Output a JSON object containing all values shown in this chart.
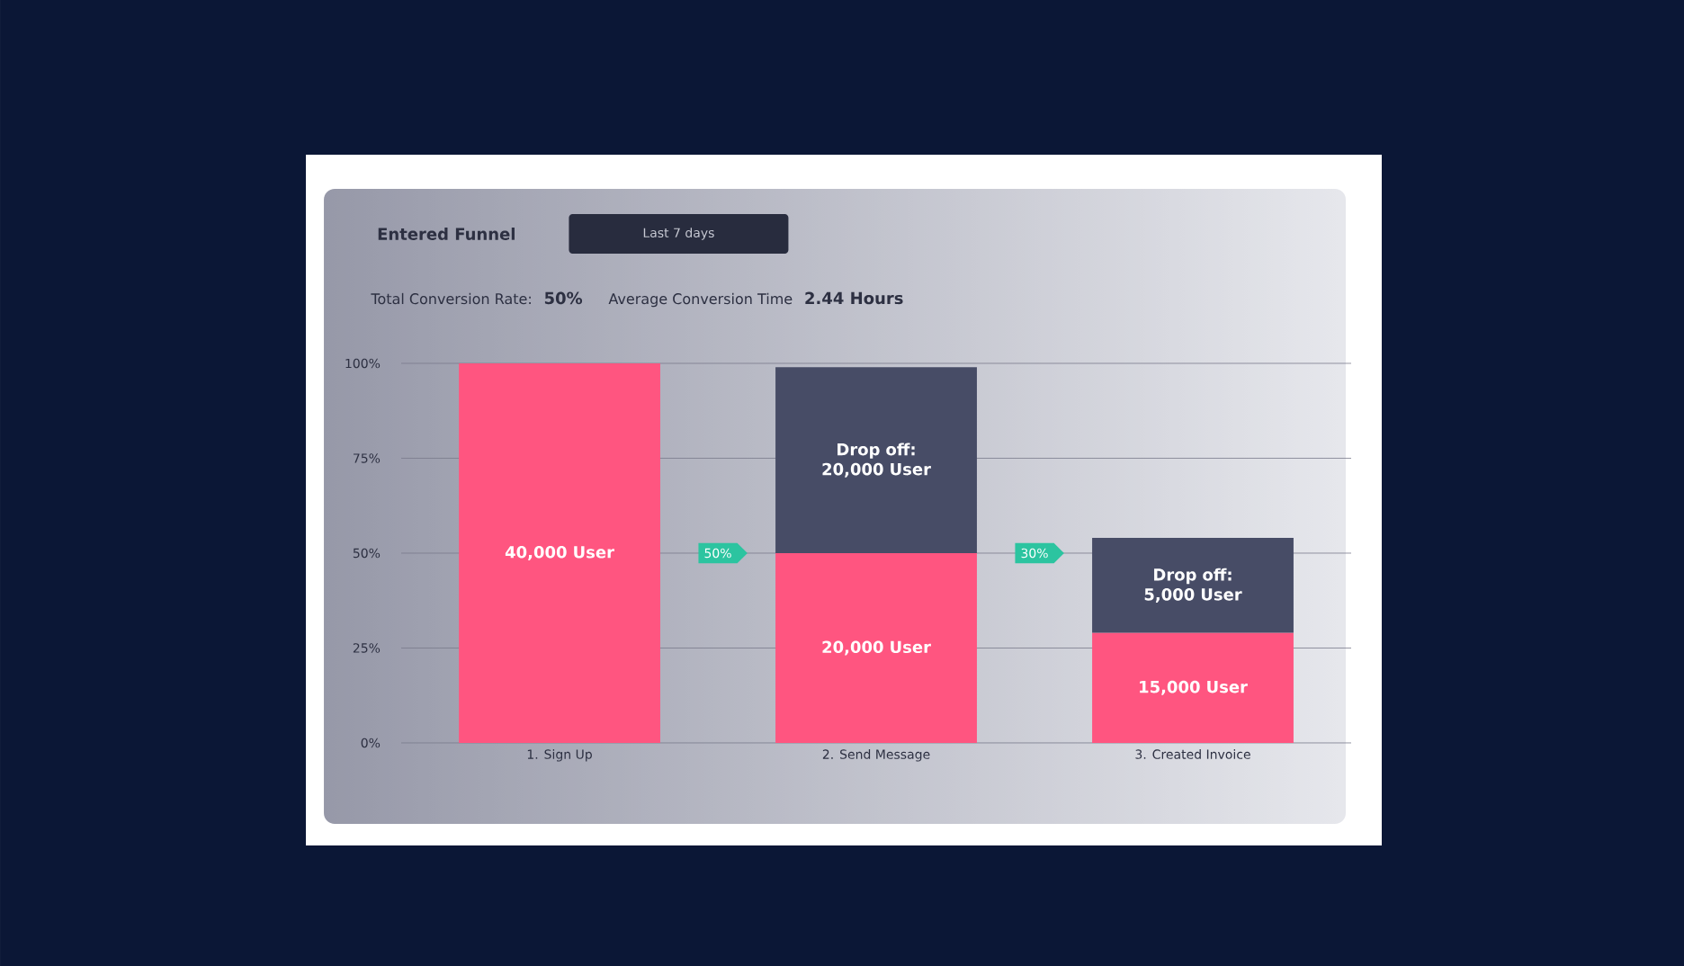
{
  "chart_data": {
    "type": "bar",
    "title": "Entered Funnel",
    "subtitle": "Last 7 days",
    "categories": [
      "1. Sign Up",
      "2. Send Message",
      "3. Created Invoice"
    ],
    "stacked": true,
    "series": [
      {
        "color": "#ff5580",
        "values": [
          100,
          50,
          29
        ]
      },
      {
        "color": "#474c66",
        "values": [
          null,
          49,
          25
        ]
      }
    ],
    "ylim": [
      0,
      100
    ],
    "yticks": [
      {
        "value": 0,
        "label": "0%"
      },
      {
        "value": 25,
        "label": "25%"
      },
      {
        "value": 50,
        "label": "50%"
      },
      {
        "value": 75,
        "label": "75%"
      },
      {
        "value": 100,
        "label": "100%"
      }
    ],
    "grid": "y",
    "annotations": [
      "Total Conversion Rate:",
      "50%",
      "Average Conversion Time",
      "2.44 Hours",
      "50%",
      "30%",
      "40,000 User",
      "20,000 User",
      "15,000 User",
      "Drop off: 20,000 User",
      "Drop off: 5,000 User"
    ]
  }
}
